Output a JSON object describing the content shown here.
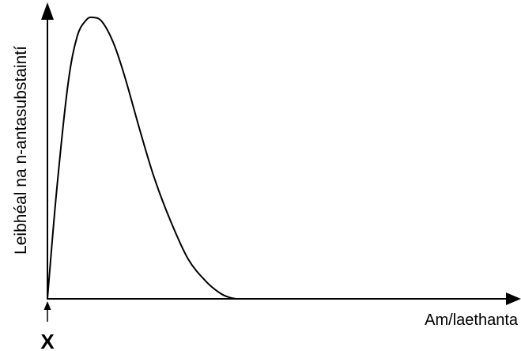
{
  "chart_data": {
    "type": "line",
    "title": "",
    "xlabel": "Am/laethanta",
    "ylabel": "Leibhéal na n-antasubstaintí",
    "grid": false,
    "legend": "none",
    "axis_ticks": "none",
    "marker_label": "X",
    "colors": {
      "line": "#000000",
      "axis": "#000000",
      "background": "#ffffff"
    },
    "series": [
      {
        "x": [
          0,
          0.02,
          0.045,
          0.065,
          0.085,
          0.1,
          0.12,
          0.145,
          0.17,
          0.205,
          0.235,
          0.27,
          0.31,
          0.35,
          0.38,
          0.4,
          0.415
        ],
        "y": [
          0,
          0.38,
          0.76,
          0.93,
          0.99,
          1.0,
          0.985,
          0.91,
          0.79,
          0.59,
          0.43,
          0.28,
          0.14,
          0.06,
          0.02,
          0.005,
          0
        ]
      }
    ]
  }
}
